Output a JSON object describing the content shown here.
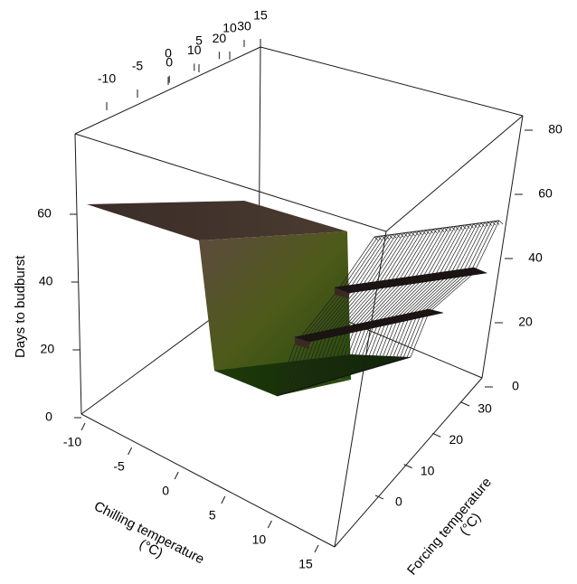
{
  "chart_data": {
    "type": "surface3d",
    "title": "",
    "xlabel_line1": "Chilling temperature",
    "xlabel_line2": "(°C)",
    "ylabel_line1": "Forcing temperature",
    "ylabel_line2": "(°C)",
    "zlabel": "Days to budburst",
    "x_front_ticks": [
      "-10",
      "-5",
      "0",
      "5",
      "10",
      "15"
    ],
    "x_back_ticks": [
      "-10",
      "-5",
      "0",
      "5",
      "10",
      "15"
    ],
    "y_left_ticks": [
      "0",
      "10",
      "20",
      "30"
    ],
    "y_right_ticks": [
      "0",
      "10",
      "20",
      "30"
    ],
    "z_left_ticks": [
      "0",
      "20",
      "40",
      "60"
    ],
    "z_right_ticks": [
      "0",
      "20",
      "40",
      "60",
      "80"
    ],
    "xlim": [
      -10,
      15
    ],
    "ylim": [
      -5,
      35
    ],
    "zlim": [
      0,
      80
    ],
    "surface": {
      "description_levels": [
        {
          "chill_from": -10,
          "chill_to": 3,
          "forcing_from": -5,
          "forcing_to": 35,
          "days": 60
        },
        {
          "chill_from": 3,
          "chill_to": 15,
          "forcing_from": -5,
          "forcing_to": 35,
          "days": 10
        }
      ],
      "mesh_steps": [
        {
          "forcing_from": -5,
          "forcing_to": 10,
          "days": 10
        },
        {
          "forcing_from": 10,
          "forcing_to": 20,
          "days": 25
        },
        {
          "forcing_from": 20,
          "forcing_to": 30,
          "days": 40
        },
        {
          "forcing_from": 30,
          "forcing_to": 35,
          "days": 55
        }
      ]
    },
    "colors": {
      "surface_top": "#3a2a26",
      "surface_mid": "#5a5a1e",
      "surface_bottom": "#2c4a10",
      "mesh": "#222222"
    }
  }
}
